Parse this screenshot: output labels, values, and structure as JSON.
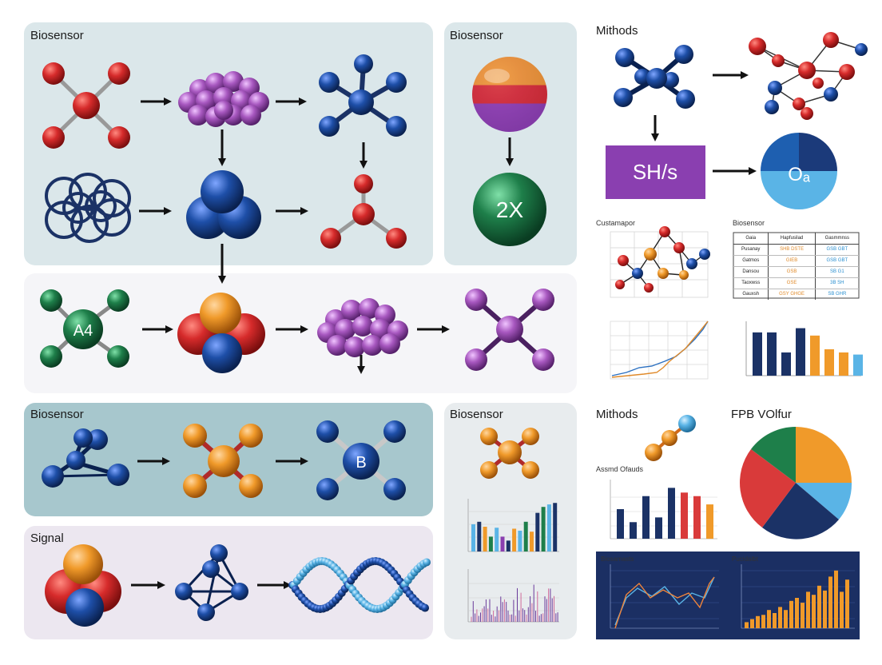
{
  "panels": {
    "top_left_label": "Biosensor",
    "top_mid_label": "Biosensor",
    "top_right_label": "Mithods",
    "bottom_left_label": "Biosensor",
    "bottom_mid_label": "Biosensor",
    "signal_label": "Signal",
    "bottom_right_label": "Mithods",
    "pie_label": "FPB VOlfur"
  },
  "molecules": {
    "green_badge": "A4",
    "blue_badge": "B",
    "green_circle_text": "2X",
    "purple_box_text": "SH/s",
    "pie_center_text": "Oₐ"
  },
  "small_charts": {
    "network_label": "Custamapor",
    "table_label": "Biosensor",
    "mini_bar_label": "Assmd Ofauds",
    "dark_left_label": "Biosamasts",
    "dark_right_label": "Pucidalbt",
    "table_headers": [
      "Gaia",
      "Hapfusilad",
      "Gasmmnss"
    ],
    "table_rows": [
      [
        "Pusanay",
        "SHB DSTE",
        "GSB GBT"
      ],
      [
        "Gatmos",
        "GIEB",
        "GSB GBT"
      ],
      [
        "Dansou",
        "GSB",
        "SB G1"
      ],
      [
        "Taoxwss",
        "GSE",
        "3B SH"
      ],
      [
        "Gauxsh",
        "GSY GHGE",
        "SB GHR"
      ]
    ]
  },
  "colors": {
    "panel_blue": "#dbe7ea",
    "panel_teal": "#a7c7cd",
    "panel_lilac": "#ece7f0",
    "panel_white": "#f5f5f8",
    "red": "#d62b2b",
    "blue": "#1e4fa8",
    "purple": "#9b55b8",
    "orange": "#f09a2a",
    "green": "#1e7f4a",
    "navy": "#1b3266"
  }
}
